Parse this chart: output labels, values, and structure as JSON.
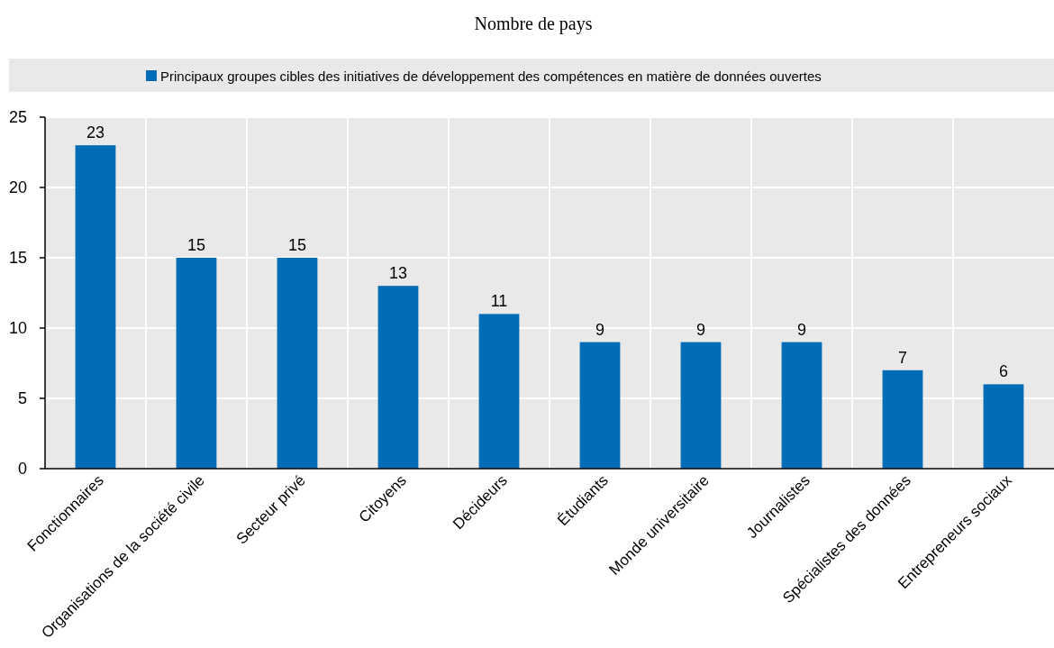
{
  "chart_data": {
    "type": "bar",
    "title": "Nombre de pays",
    "categories": [
      "Fonctionnaires",
      "Organisations de la société civile",
      "Secteur privé",
      "Citoyens",
      "Décideurs",
      "Étudiants",
      "Monde universitaire",
      "Journalistes",
      "Spécialistes des données",
      "Entrepreneurs sociaux"
    ],
    "series": [
      {
        "name": "Principaux groupes cibles des initiatives de développement des compétences en matière de données ouvertes",
        "color": "#006bb6",
        "values": [
          23,
          15,
          15,
          13,
          11,
          9,
          9,
          9,
          7,
          6
        ]
      }
    ],
    "ylim": [
      0,
      25
    ],
    "yticks": [
      0,
      5,
      10,
      15,
      20,
      25
    ],
    "grid": true,
    "legend": "top",
    "data_labels": true
  }
}
